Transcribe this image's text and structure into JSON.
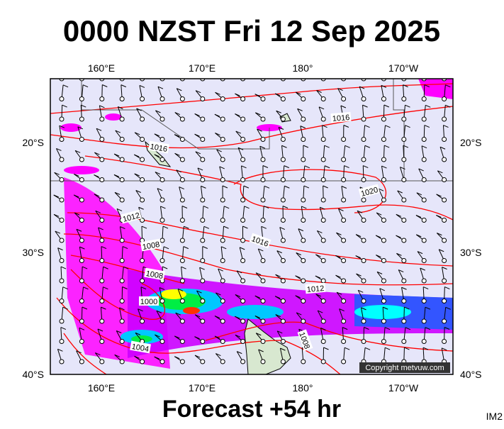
{
  "header": {
    "title": "0000 NZST Fri 12 Sep 2025"
  },
  "map": {
    "longitude_labels": [
      "160°E",
      "170°E",
      "180°",
      "170°W"
    ],
    "latitude_labels": [
      "20°S",
      "30°S",
      "40°S"
    ],
    "isobar_labels": [
      "1016",
      "1016",
      "1020",
      "1012",
      "1016",
      "1008",
      "1008",
      "1012",
      "1000",
      "1004",
      "1008"
    ],
    "copyright": "Copyright metvuw.com"
  },
  "footer": {
    "forecast": "Forecast +54 hr",
    "image_id": "IM2"
  }
}
